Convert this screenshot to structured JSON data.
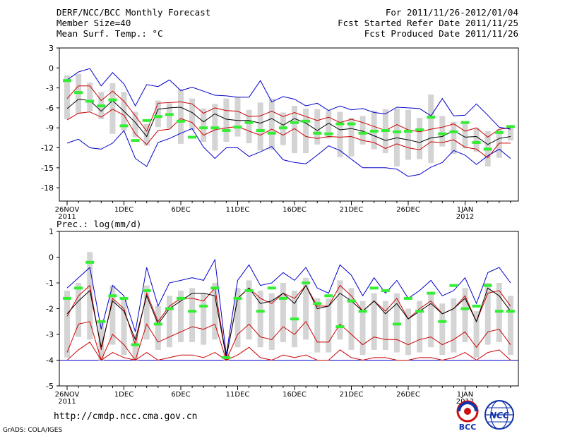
{
  "header": {
    "title": "DERF/NCC/BCC Monthly Forecast",
    "member_size": "Member Size=40",
    "variable": "Mean Surf. Temp.: °C",
    "forecast_range": "For 2011/11/26-2012/01/04",
    "started_refer": "Fcst Started Refer Date 2011/11/25",
    "produced": "Fcst Produced Date 2011/11/26"
  },
  "footer": {
    "url": "http://cmdp.ncc.cma.gov.cn",
    "credit": "GrADS: COLA/IGES",
    "logo_bcc": "BCC",
    "logo_ncc": "NCC"
  },
  "colors": {
    "envelope": "#0000cc",
    "quartile": "#cc0000",
    "mean": "#000000",
    "box": "#d4d4d4",
    "observed": "#33ee33"
  },
  "chart_data": [
    {
      "type": "line",
      "title": "Mean Surf. Temp.: °C",
      "ylabel": "°C",
      "ylim": [
        -20,
        3
      ],
      "yticks": [
        3,
        0,
        -3,
        -6,
        -9,
        -12,
        -15,
        -18
      ],
      "ytick_labels": [
        "3",
        "0",
        "-3",
        "-6",
        "-9",
        "-12",
        "-15",
        "-18"
      ],
      "x": [
        1,
        2,
        3,
        4,
        5,
        6,
        7,
        8,
        9,
        10,
        11,
        12,
        13,
        14,
        15,
        16,
        17,
        18,
        19,
        20,
        21,
        22,
        23,
        24,
        25,
        26,
        27,
        28,
        29,
        30,
        31,
        32,
        33,
        34,
        35,
        36,
        37,
        38,
        39,
        40
      ],
      "xtick_positions": [
        1,
        6,
        11,
        16,
        21,
        26,
        31,
        36
      ],
      "xtick_labels": [
        "26NOV\n2011",
        "1DEC",
        "6DEC",
        "11DEC",
        "16DEC",
        "21DEC",
        "26DEC",
        "1JAN\n2012"
      ],
      "series": [
        {
          "name": "max",
          "color_key": "envelope",
          "values": [
            -11.3,
            -10.7,
            -12,
            -12.2,
            -11.3,
            -9.4,
            -13.6,
            -14.8,
            -11.2,
            -10.6,
            -9.8,
            -9.1,
            -11.9,
            -13.6,
            -12,
            -12,
            -13.3,
            -12.6,
            -11.8,
            -13.8,
            -14.2,
            -14.4,
            -13.1,
            -11.7,
            -12.4,
            -13.7,
            -15,
            -15,
            -15,
            -15.2,
            -16.3,
            -16,
            -14.9,
            -14.2,
            -12.4,
            -13.1,
            -14.5,
            -13.2,
            -12.2,
            -13.6
          ]
        },
        {
          "name": "q_low",
          "color_key": "quartile",
          "values": [
            -7.8,
            -6.8,
            -6.6,
            -7.4,
            -6.2,
            -7.1,
            -9.9,
            -11.5,
            -9.4,
            -9.2,
            -7.6,
            -8.2,
            -10.1,
            -9.3,
            -9,
            -8.8,
            -9.5,
            -10.1,
            -9.2,
            -10.1,
            -9.1,
            -10.3,
            -10.6,
            -10.3,
            -10.4,
            -10.3,
            -10.9,
            -11.2,
            -12.1,
            -11.4,
            -12,
            -12.3,
            -11.1,
            -11.2,
            -10.8,
            -11.9,
            -12.2,
            -13.5,
            -11.3,
            -11.3
          ]
        },
        {
          "name": "mean",
          "color_key": "mean",
          "values": [
            -6.1,
            -4.7,
            -4.9,
            -6.5,
            -4.9,
            -6.5,
            -8.2,
            -10.3,
            -6.2,
            -6,
            -5.9,
            -6.7,
            -8.1,
            -6.9,
            -7.7,
            -7.9,
            -7.9,
            -8.3,
            -7.6,
            -8.6,
            -7.6,
            -8.3,
            -9.4,
            -8.3,
            -9.3,
            -9.1,
            -9.5,
            -10.2,
            -10.9,
            -10.5,
            -10.8,
            -11.2,
            -10.5,
            -10.3,
            -9.4,
            -10.4,
            -10.3,
            -11.5,
            -10.6,
            -10.3
          ]
        },
        {
          "name": "q_high",
          "color_key": "quartile",
          "values": [
            -4.6,
            -2.7,
            -2.7,
            -4.9,
            -3.5,
            -5,
            -7.2,
            -9.5,
            -5.3,
            -5.2,
            -5.1,
            -5.4,
            -6.8,
            -6,
            -6.4,
            -6.5,
            -7.3,
            -7.2,
            -6.5,
            -7.3,
            -6.7,
            -7.3,
            -7.9,
            -7.4,
            -8.2,
            -7.7,
            -8.2,
            -8.8,
            -9.4,
            -8.5,
            -9.3,
            -9.6,
            -9.2,
            -8.9,
            -8.4,
            -9.5,
            -9,
            -10.4,
            -9.2,
            -9
          ]
        },
        {
          "name": "min",
          "color_key": "envelope",
          "values": [
            -1.8,
            -0.6,
            -0.1,
            -2.7,
            -0.7,
            -2.4,
            -5.7,
            -2.5,
            -2.8,
            -1.8,
            -3.4,
            -2.9,
            -3.5,
            -4.1,
            -4.2,
            -4.4,
            -4.4,
            -1.9,
            -5.1,
            -4.3,
            -4.7,
            -5.7,
            -5.3,
            -6.4,
            -5.7,
            -6.3,
            -6.1,
            -6.7,
            -6.9,
            -5.9,
            -6,
            -6.1,
            -7.2,
            -4.6,
            -7.2,
            -7.1,
            -5.4,
            -7.1,
            -8.9,
            -9.2
          ]
        }
      ],
      "boxes_low": [
        -7.7,
        -6.9,
        -6.5,
        -7.7,
        -9.9,
        -9.4,
        -10.4,
        -11.7,
        -8.9,
        -9.1,
        -11.4,
        -9.4,
        -11.1,
        -12.4,
        -11.1,
        -10.3,
        -11.3,
        -12.4,
        -12.3,
        -11.6,
        -12.8,
        -12.8,
        -11.5,
        -10.6,
        -13.4,
        -13.3,
        -11.5,
        -12.2,
        -12.8,
        -14.8,
        -13.8,
        -13.7,
        -14.3,
        -11.8,
        -12.9,
        -12.1,
        -12.6,
        -14.8,
        -13.5,
        -10.9
      ],
      "boxes_high": [
        -1.1,
        -0.9,
        -2.2,
        -3.6,
        -2.3,
        -3.6,
        -6.6,
        -8.4,
        -4.9,
        -5.3,
        -3.2,
        -4.6,
        -6.1,
        -5.4,
        -4.6,
        -4.4,
        -6.3,
        -5.2,
        -4.6,
        -6.7,
        -5.7,
        -6.1,
        -6.2,
        -6.4,
        -6.6,
        -7.5,
        -7.2,
        -6.4,
        -6.2,
        -6.1,
        -6.3,
        -7.5,
        -4,
        -7.2,
        -8.1,
        -8.3,
        -9,
        -9.5,
        -9.2,
        -8.8
      ],
      "observed": [
        -1.9,
        -3.7,
        -5,
        -5.7,
        -4.8,
        -8.7,
        -10.9,
        -7.9,
        -7.3,
        -7,
        -8,
        -10.4,
        -9,
        -9,
        -9.4,
        -8.9,
        -8.2,
        -9.4,
        -9.8,
        -9,
        -8.2,
        -8,
        -9.8,
        -9.9,
        -8.4,
        -8.4,
        -9.8,
        -9.5,
        -9.4,
        -9.6,
        -9.5,
        -9.3,
        -7.4,
        -9.9,
        -9.6,
        -8.2,
        -11.2,
        -12.2,
        -9.7,
        -8.8
      ]
    },
    {
      "type": "line",
      "title": "Prec.: log(mm/d)",
      "ylabel": "log(mm/d)",
      "ylim": [
        -5,
        1
      ],
      "yticks": [
        1,
        0,
        -1,
        -2,
        -3,
        -4,
        -5
      ],
      "ytick_labels": [
        "1",
        "0",
        "-1",
        "-2",
        "-3",
        "-4",
        "-5"
      ],
      "x": [
        1,
        2,
        3,
        4,
        5,
        6,
        7,
        8,
        9,
        10,
        11,
        12,
        13,
        14,
        15,
        16,
        17,
        18,
        19,
        20,
        21,
        22,
        23,
        24,
        25,
        26,
        27,
        28,
        29,
        30,
        31,
        32,
        33,
        34,
        35,
        36,
        37,
        38,
        39,
        40
      ],
      "xtick_positions": [
        1,
        6,
        11,
        16,
        21,
        26,
        31,
        36
      ],
      "xtick_labels": [
        "26NOV\n2011",
        "1DEC",
        "6DEC",
        "11DEC",
        "16DEC",
        "21DEC",
        "26DEC",
        "1JAN\n2012"
      ],
      "baseline": -4,
      "series": [
        {
          "name": "max",
          "color_key": "envelope",
          "values": [
            -1.2,
            -0.8,
            -0.4,
            -2.8,
            -1.1,
            -1.5,
            -2.9,
            -0.4,
            -1.9,
            -1,
            -0.9,
            -0.8,
            -0.9,
            -0.1,
            -3.8,
            -0.9,
            -0.3,
            -1.1,
            -1,
            -0.6,
            -0.9,
            -0.4,
            -1.2,
            -1.4,
            -0.3,
            -0.7,
            -1.5,
            -0.8,
            -1.4,
            -0.9,
            -1.6,
            -1.3,
            -0.9,
            -1.5,
            -1.3,
            -0.8,
            -1.8,
            -0.6,
            -0.4,
            -1
          ]
        },
        {
          "name": "q_high",
          "color_key": "quartile",
          "values": [
            -2.3,
            -1.5,
            -1.1,
            -3.6,
            -1.6,
            -2,
            -3.4,
            -1.4,
            -2.5,
            -1.9,
            -1.6,
            -1.6,
            -1.7,
            -1.2,
            -3.9,
            -1.6,
            -1.2,
            -1.6,
            -1.8,
            -1.4,
            -1.6,
            -1.1,
            -1.9,
            -1.9,
            -1.1,
            -1.5,
            -2.1,
            -1.7,
            -2.1,
            -1.6,
            -2.4,
            -2,
            -1.7,
            -2.2,
            -2,
            -1.5,
            -2.5,
            -1.4,
            -1.3,
            -1.9
          ]
        },
        {
          "name": "mean",
          "color_key": "mean",
          "values": [
            -2.2,
            -1.7,
            -1.3,
            -3.5,
            -1.7,
            -2.1,
            -3.2,
            -1.5,
            -2.6,
            -2,
            -1.7,
            -1.4,
            -1.4,
            -1.5,
            -3.9,
            -1.6,
            -1.2,
            -1.8,
            -1.7,
            -1.4,
            -1.8,
            -1.1,
            -2,
            -1.9,
            -1.4,
            -1.7,
            -2.1,
            -1.7,
            -2.2,
            -1.8,
            -2.4,
            -2.1,
            -1.8,
            -2.2,
            -2,
            -1.6,
            -2.5,
            -1.2,
            -1.5,
            -2.1
          ]
        },
        {
          "name": "q_low",
          "color_key": "quartile",
          "values": [
            -3.7,
            -2.6,
            -2.5,
            -4,
            -3,
            -3.4,
            -4,
            -2.6,
            -3.3,
            -3.1,
            -2.9,
            -2.7,
            -2.8,
            -2.6,
            -4,
            -3,
            -2.6,
            -3.1,
            -3.2,
            -2.7,
            -3,
            -2.5,
            -3.3,
            -3.3,
            -2.6,
            -3,
            -3.4,
            -3.1,
            -3.2,
            -3.2,
            -3.4,
            -3.2,
            -3.1,
            -3.4,
            -3.2,
            -2.9,
            -3.5,
            -2.9,
            -2.8,
            -3.4
          ]
        },
        {
          "name": "min",
          "color_key": "quartile",
          "values": [
            -4,
            -3.6,
            -3.3,
            -4,
            -3.7,
            -3.9,
            -4,
            -3.7,
            -4,
            -3.9,
            -3.8,
            -3.8,
            -3.9,
            -3.7,
            -4,
            -3.8,
            -3.5,
            -3.9,
            -4,
            -3.8,
            -3.9,
            -3.8,
            -4,
            -4,
            -3.6,
            -3.9,
            -4,
            -3.9,
            -3.9,
            -4,
            -4,
            -3.9,
            -3.9,
            -4,
            -3.9,
            -3.7,
            -4,
            -3.7,
            -3.6,
            -4
          ]
        }
      ],
      "boxes_low": [
        -3.9,
        -3.1,
        -3.2,
        -4,
        -3.4,
        -3.8,
        -4,
        -3.2,
        -3.6,
        -3.5,
        -3.3,
        -3.3,
        -3.4,
        -3.2,
        -4,
        -3.5,
        -3.2,
        -3.5,
        -3.6,
        -3.3,
        -3.5,
        -3.2,
        -3.7,
        -3.7,
        -3.2,
        -3.6,
        -3.8,
        -3.6,
        -3.6,
        -3.7,
        -3.8,
        -3.7,
        -3.5,
        -3.8,
        -3.7,
        -3.3,
        -3.9,
        -3.4,
        -3.3,
        -3.8
      ],
      "boxes_high": [
        -1.3,
        -1,
        0.2,
        -2.5,
        -1.1,
        -1.6,
        -3,
        -1.1,
        -1.9,
        -1.5,
        -1.3,
        -1.2,
        -1.4,
        -1,
        -3.7,
        -1.2,
        -0.9,
        -1.3,
        -1.4,
        -1,
        -1.3,
        -0.8,
        -1.6,
        -1.6,
        -0.9,
        -1.2,
        -1.7,
        -1.4,
        -1.7,
        -1.4,
        -2,
        -1.7,
        -1.4,
        -1.8,
        -1.6,
        -1.2,
        -2.1,
        -1,
        -1,
        -1.5
      ],
      "observed": [
        -1.6,
        -1.2,
        -0.2,
        -2.5,
        -1.5,
        -1.6,
        -3.4,
        -1.3,
        -2.6,
        -2,
        -1.6,
        -2.1,
        -1.9,
        -1.2,
        -3.9,
        -1.6,
        -1.3,
        -2.1,
        -1.2,
        -1.6,
        -2.4,
        -1,
        -1.8,
        -1.5,
        -2.7,
        -1.7,
        -2.1,
        -1.2,
        -1.3,
        -2.6,
        -1.6,
        -2.1,
        -1.4,
        -2.5,
        -1.1,
        -2,
        -1.9,
        -1.1,
        -2.1,
        -2.1
      ]
    }
  ]
}
